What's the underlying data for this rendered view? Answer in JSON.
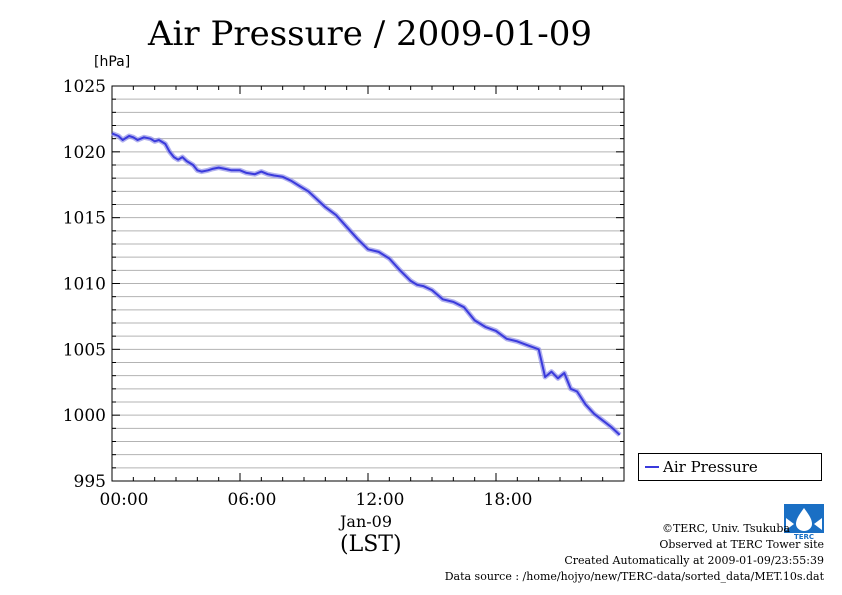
{
  "chart_data": {
    "type": "line",
    "title": "Air Pressure / 2009-01-09",
    "ylabel_unit": "[hPa]",
    "date_label": "Jan-09",
    "timezone_label": "(LST)",
    "ylim": [
      995,
      1025
    ],
    "y_ticks": [
      "995",
      "1000",
      "1005",
      "1010",
      "1015",
      "1020",
      "1025"
    ],
    "x_range_hours": [
      0,
      24
    ],
    "x_ticks": [
      {
        "hour": 0,
        "label": "00:00"
      },
      {
        "hour": 6,
        "label": "06:00"
      },
      {
        "hour": 12,
        "label": "12:00"
      },
      {
        "hour": 18,
        "label": "18:00"
      }
    ],
    "grid": true,
    "legend_position": "right-bottom-outside",
    "series": [
      {
        "name": "Air Pressure",
        "color": "#3a3adc",
        "x_hours": [
          0.0,
          0.3,
          0.5,
          0.8,
          1.0,
          1.2,
          1.5,
          1.8,
          2.0,
          2.2,
          2.5,
          2.7,
          2.9,
          3.1,
          3.3,
          3.5,
          3.8,
          4.0,
          4.2,
          4.5,
          4.7,
          5.0,
          5.3,
          5.6,
          6.0,
          6.3,
          6.7,
          7.0,
          7.3,
          7.6,
          8.0,
          8.4,
          8.8,
          9.2,
          9.6,
          10.0,
          10.5,
          11.0,
          11.5,
          12.0,
          12.5,
          13.0,
          13.5,
          14.0,
          14.3,
          14.6,
          15.0,
          15.5,
          16.0,
          16.5,
          17.0,
          17.5,
          18.0,
          18.5,
          19.0,
          19.5,
          20.0,
          20.3,
          20.6,
          20.9,
          21.2,
          21.5,
          21.8,
          22.2,
          22.6,
          23.0,
          23.4,
          23.8
        ],
        "values": [
          1021.4,
          1021.2,
          1020.9,
          1021.2,
          1021.1,
          1020.9,
          1021.1,
          1021.0,
          1020.8,
          1020.9,
          1020.6,
          1020.0,
          1019.6,
          1019.4,
          1019.6,
          1019.3,
          1019.0,
          1018.6,
          1018.5,
          1018.6,
          1018.7,
          1018.8,
          1018.7,
          1018.6,
          1018.6,
          1018.4,
          1018.3,
          1018.5,
          1018.3,
          1018.2,
          1018.1,
          1017.8,
          1017.4,
          1017.0,
          1016.4,
          1015.8,
          1015.2,
          1014.3,
          1013.4,
          1012.6,
          1012.4,
          1011.9,
          1011.0,
          1010.2,
          1009.9,
          1009.8,
          1009.5,
          1008.8,
          1008.6,
          1008.2,
          1007.2,
          1006.7,
          1006.4,
          1005.8,
          1005.6,
          1005.3,
          1005.0,
          1002.9,
          1003.3,
          1002.8,
          1003.2,
          1002.0,
          1001.8,
          1000.8,
          1000.1,
          999.6,
          999.1,
          998.5
        ]
      }
    ]
  },
  "footer": {
    "copyright": "©TERC, Univ. Tsukuba",
    "observed": "Observed at TERC Tower site",
    "created": "Created Automatically at 2009-01-09/23:55:39",
    "source": "Data source : /home/hojyo/new/TERC-data/sorted_data/MET.10s.dat"
  },
  "logo_text": "TERC"
}
